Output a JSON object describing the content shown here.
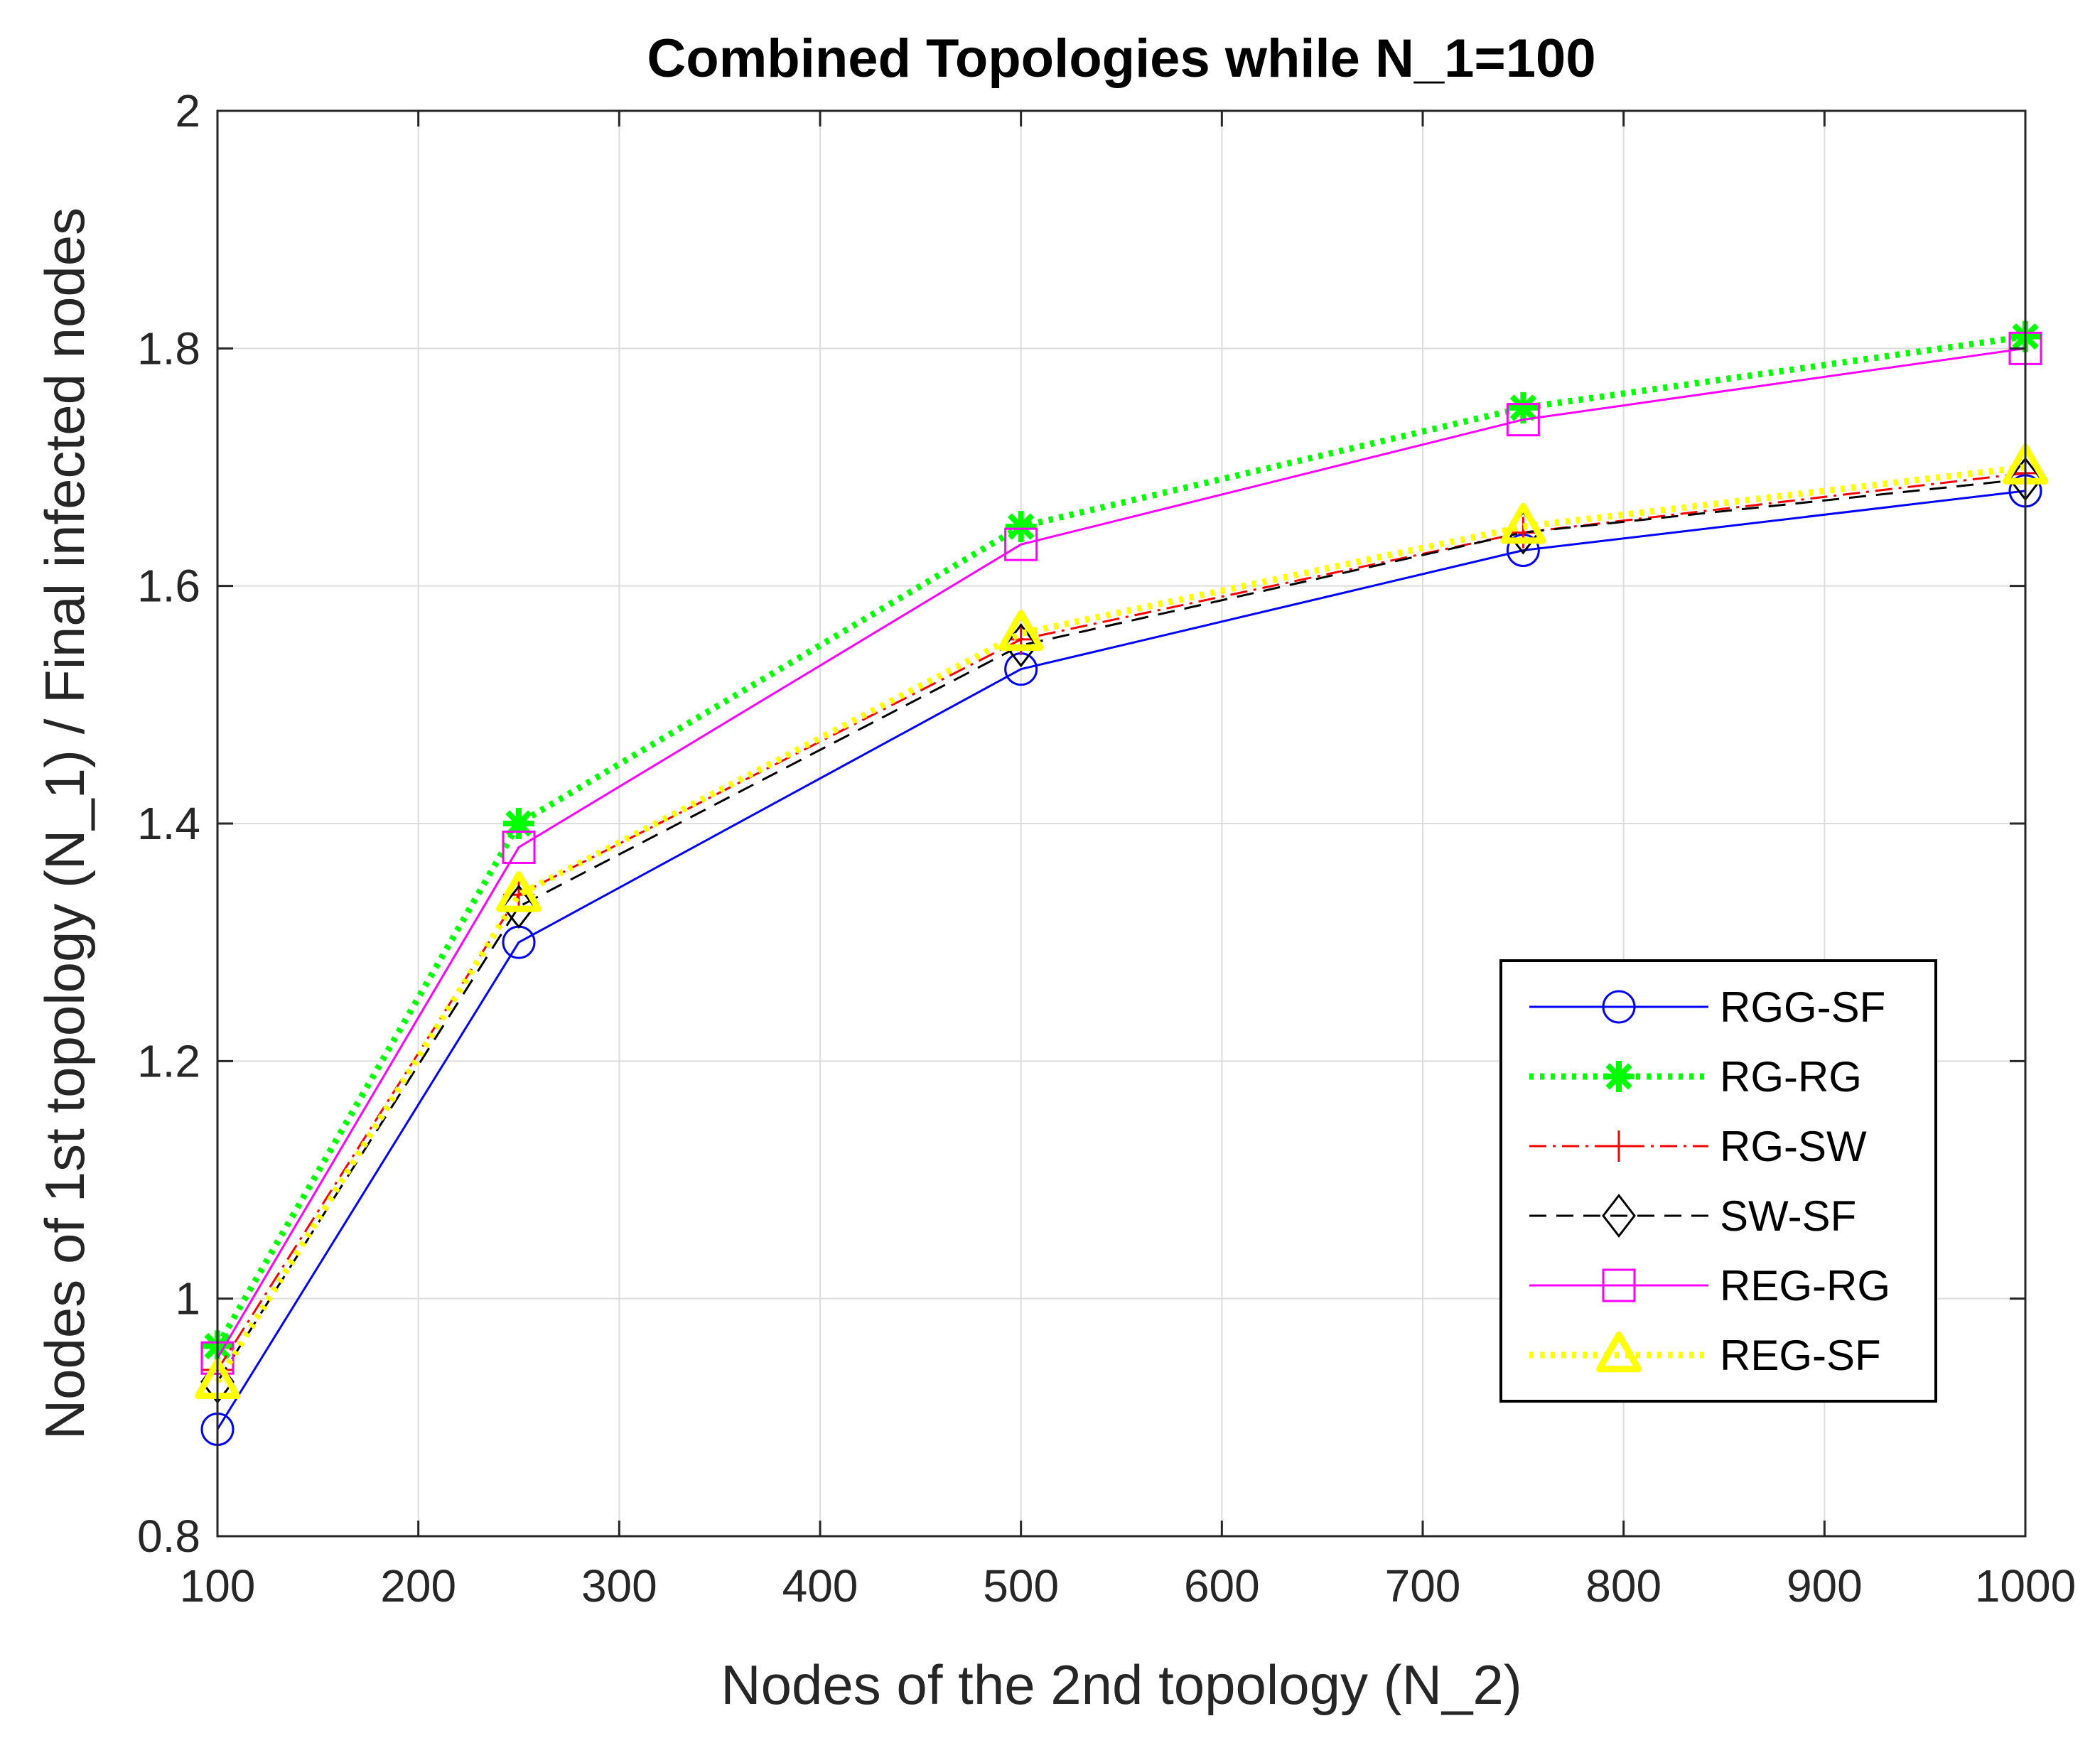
{
  "chart_data": {
    "type": "line",
    "title": "Combined Topologies while N_1=100",
    "xlabel": "Nodes of the 2nd topology (N_2)",
    "ylabel": "Nodes of 1st topology (N_1) / Final infected nodes",
    "xlim": [
      100,
      1000
    ],
    "ylim": [
      0.8,
      2
    ],
    "xticks": [
      100,
      200,
      300,
      400,
      500,
      600,
      700,
      800,
      900,
      1000
    ],
    "yticks": [
      0.8,
      1,
      1.2,
      1.4,
      1.6,
      1.8,
      2
    ],
    "xtick_labels": [
      "100",
      "200",
      "300",
      "400",
      "500",
      "600",
      "700",
      "800",
      "900",
      "1000"
    ],
    "ytick_labels": [
      "0.8",
      "1",
      "1.2",
      "1.4",
      "1.6",
      "1.8",
      "2"
    ],
    "grid": true,
    "legend_position": "bottom-right",
    "x": [
      100,
      250,
      500,
      750,
      1000
    ],
    "series": [
      {
        "name": "RGG-SF",
        "values": [
          0.89,
          1.3,
          1.53,
          1.63,
          1.68
        ],
        "color": "#0000ff",
        "dash": "",
        "width": 3,
        "marker": "circle"
      },
      {
        "name": "RG-RG",
        "values": [
          0.96,
          1.4,
          1.65,
          1.75,
          1.81
        ],
        "color": "#00ff00",
        "dash": "6,9",
        "width": 9,
        "marker": "asterisk"
      },
      {
        "name": "RG-SW",
        "values": [
          0.94,
          1.34,
          1.555,
          1.645,
          1.695
        ],
        "color": "#ff0000",
        "dash": "24,9,4,9",
        "width": 3,
        "marker": "plus"
      },
      {
        "name": "SW-SF",
        "values": [
          0.93,
          1.33,
          1.55,
          1.645,
          1.69
        ],
        "color": "#000000",
        "dash": "24,14",
        "width": 3,
        "marker": "diamond"
      },
      {
        "name": "REG-RG",
        "values": [
          0.95,
          1.38,
          1.635,
          1.74,
          1.8
        ],
        "color": "#ff00ff",
        "dash": "",
        "width": 3,
        "marker": "square"
      },
      {
        "name": "REG-SF",
        "values": [
          0.93,
          1.34,
          1.56,
          1.65,
          1.7
        ],
        "color": "#ffff00",
        "dash": "6,9",
        "width": 9,
        "marker": "triangle"
      }
    ]
  }
}
